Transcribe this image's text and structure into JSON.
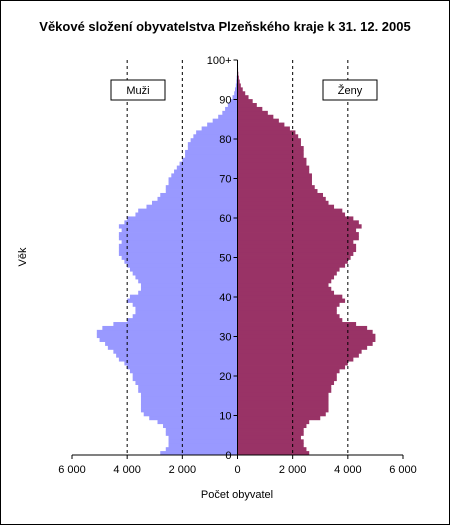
{
  "chart_data": {
    "type": "bar",
    "orientation": "horizontal-population-pyramid",
    "title": "Věkové složení obyvatelstva Plzeňského kraje k 31. 12. 2005",
    "xlabel": "Počet obyvatel",
    "ylabel": "Věk",
    "xlim": [
      -6000,
      6000
    ],
    "ylim": [
      0,
      100
    ],
    "x_ticks": [
      "6 000",
      "4 000",
      "2 000",
      "0",
      "2 000",
      "4 000",
      "6 000"
    ],
    "y_ticks": [
      "0",
      "10",
      "20",
      "30",
      "40",
      "50",
      "60",
      "70",
      "80",
      "90",
      "100+"
    ],
    "gridlines_x": [
      -4000,
      -2000,
      2000,
      4000
    ],
    "grid_style": "dashed",
    "legend_placement": "top, inside each half",
    "colors": {
      "male": "#9999ff",
      "female": "#993366"
    },
    "ages": [
      0,
      1,
      2,
      3,
      4,
      5,
      6,
      7,
      8,
      9,
      10,
      11,
      12,
      13,
      14,
      15,
      16,
      17,
      18,
      19,
      20,
      21,
      22,
      23,
      24,
      25,
      26,
      27,
      28,
      29,
      30,
      31,
      32,
      33,
      34,
      35,
      36,
      37,
      38,
      39,
      40,
      41,
      42,
      43,
      44,
      45,
      46,
      47,
      48,
      49,
      50,
      51,
      52,
      53,
      54,
      55,
      56,
      57,
      58,
      59,
      60,
      61,
      62,
      63,
      64,
      65,
      66,
      67,
      68,
      69,
      70,
      71,
      72,
      73,
      74,
      75,
      76,
      77,
      78,
      79,
      80,
      81,
      82,
      83,
      84,
      85,
      86,
      87,
      88,
      89,
      90,
      91,
      92,
      93,
      94,
      95,
      96,
      97,
      98,
      99,
      100
    ],
    "series": [
      {
        "name": "Muži",
        "values": [
          2800,
          2600,
          2500,
          2500,
          2500,
          2600,
          2600,
          2700,
          2900,
          3200,
          3400,
          3500,
          3500,
          3500,
          3500,
          3500,
          3600,
          3600,
          3700,
          3800,
          3800,
          3900,
          4000,
          4100,
          4300,
          4400,
          4500,
          4700,
          4800,
          5000,
          5100,
          5100,
          4900,
          4500,
          4000,
          3800,
          3700,
          3700,
          3800,
          4000,
          3900,
          3600,
          3500,
          3500,
          3600,
          3700,
          3800,
          3900,
          4000,
          4100,
          4200,
          4300,
          4300,
          4300,
          4200,
          4300,
          4300,
          4200,
          4300,
          4100,
          4000,
          3700,
          3600,
          3300,
          3100,
          2900,
          2800,
          2600,
          2600,
          2500,
          2500,
          2400,
          2300,
          2200,
          2100,
          2000,
          1900,
          1900,
          1800,
          1800,
          1700,
          1600,
          1500,
          1300,
          1100,
          900,
          700,
          550,
          450,
          350,
          250,
          180,
          120,
          90,
          60,
          40,
          30,
          20,
          15,
          10,
          8
        ],
        "color": "#9999ff"
      },
      {
        "name": "Ženy",
        "values": [
          2600,
          2500,
          2400,
          2400,
          2300,
          2400,
          2400,
          2500,
          2600,
          3000,
          3200,
          3300,
          3300,
          3300,
          3300,
          3300,
          3400,
          3400,
          3500,
          3600,
          3600,
          3700,
          3900,
          4000,
          4200,
          4400,
          4500,
          4700,
          4900,
          5000,
          5000,
          4900,
          4700,
          4300,
          3800,
          3700,
          3600,
          3600,
          3700,
          3900,
          3800,
          3500,
          3400,
          3300,
          3400,
          3500,
          3600,
          3700,
          3900,
          4000,
          4100,
          4200,
          4300,
          4300,
          4200,
          4400,
          4400,
          4300,
          4500,
          4400,
          4200,
          3900,
          3800,
          3500,
          3300,
          3200,
          3100,
          2900,
          2800,
          2700,
          2700,
          2700,
          2600,
          2600,
          2500,
          2500,
          2400,
          2400,
          2400,
          2300,
          2300,
          2200,
          2100,
          1900,
          1700,
          1500,
          1300,
          1100,
          900,
          700,
          550,
          400,
          280,
          190,
          120,
          80,
          50,
          30,
          20,
          12,
          10
        ],
        "color": "#993366"
      }
    ]
  }
}
